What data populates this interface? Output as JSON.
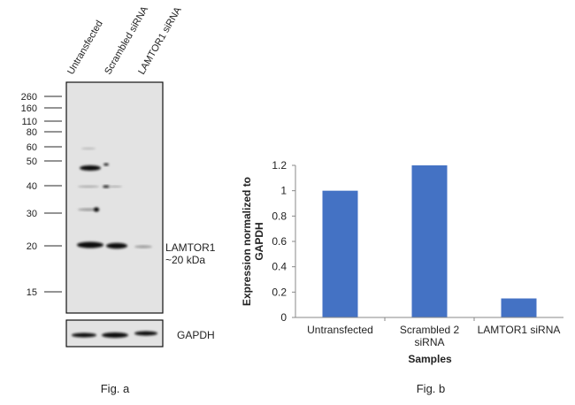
{
  "blot": {
    "lane_labels": [
      "Untransfected",
      "Scrambled siRNA",
      "LAMTOR1 siRNA"
    ],
    "markers": [
      "260",
      "160",
      "110",
      "80",
      "60",
      "50",
      "40",
      "30",
      "20",
      "15"
    ],
    "target_label": "LAMTOR1",
    "target_size": "~20 kDa",
    "loading_control": "GAPDH",
    "caption": "Fig. a"
  },
  "chart_data": {
    "type": "bar",
    "categories": [
      "Untransfected",
      "Scrambled 2 siRNA",
      "LAMTOR1 siRNA"
    ],
    "category_lines": [
      [
        "Untransfected"
      ],
      [
        "Scrambled 2",
        "siRNA"
      ],
      [
        "LAMTOR1 siRNA"
      ]
    ],
    "values": [
      1.0,
      1.2,
      0.15
    ],
    "title": "",
    "xlabel": "Samples",
    "ylabel_lines": [
      "Expression normalized to",
      "GAPDH"
    ],
    "ylabel": "Expression normalized to GAPDH",
    "ylim": [
      0,
      1.2
    ],
    "yticks": [
      "0",
      "0.2",
      "0.4",
      "0.6",
      "0.8",
      "1",
      "1.2"
    ],
    "grid": false,
    "bar_color": "#4472C4",
    "caption": "Fig. b"
  }
}
